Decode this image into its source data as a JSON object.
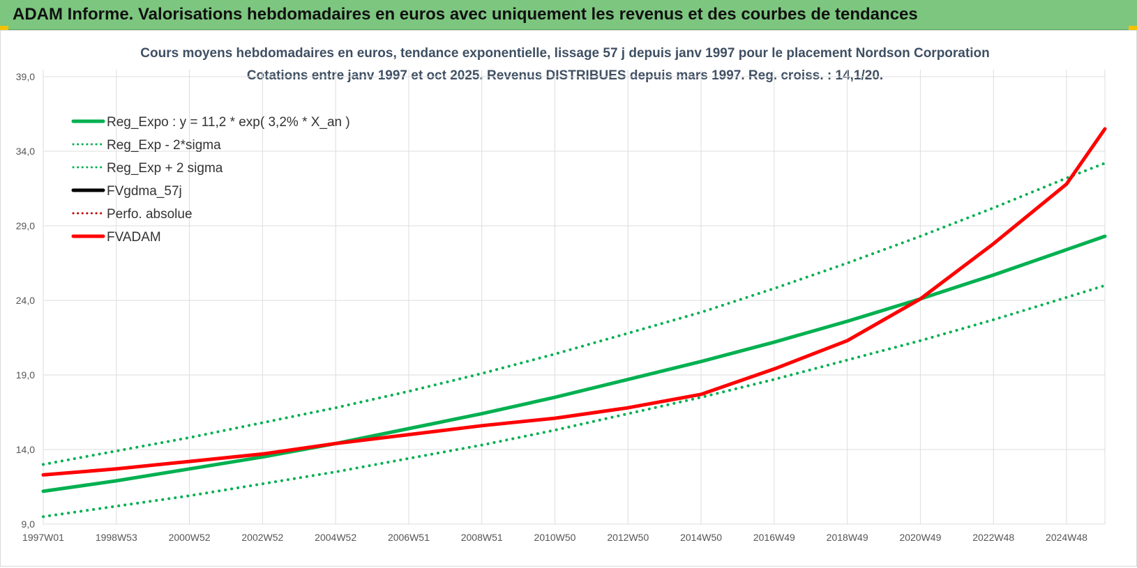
{
  "header": {
    "title": "ADAM Informe. Valorisations hebdomadaires en euros avec uniquement les revenus et des courbes de tendances",
    "color": "#7cc67f"
  },
  "chart_data": {
    "type": "line",
    "title": "Cours moyens hebdomadaires en euros, tendance exponentielle, lissage 57 j depuis janv 1997 pour le placement Nordson Corporation",
    "subtitle": "Cotations entre janv 1997 et oct 2025. Revenus DISTRIBUES depuis mars 1997. Reg. croiss. : 14,1/20.",
    "xlabel": "",
    "ylabel": "",
    "ylim": [
      9.0,
      39.0
    ],
    "y_ticks": [
      "9,0",
      "14,0",
      "19,0",
      "24,0",
      "29,0",
      "34,0",
      "39,0"
    ],
    "x_ticks": [
      "1997W01",
      "1998W53",
      "2000W52",
      "2002W52",
      "2004W52",
      "2006W51",
      "2008W51",
      "2010W50",
      "2012W50",
      "2014W50",
      "2016W49",
      "2018W49",
      "2020W49",
      "2022W48",
      "2024W48"
    ],
    "x": [
      "1997W01",
      "1998W53",
      "2000W52",
      "2002W52",
      "2004W52",
      "2006W51",
      "2008W51",
      "2010W50",
      "2012W50",
      "2014W50",
      "2016W49",
      "2018W49",
      "2020W49",
      "2022W48",
      "2024W48",
      "2025W43"
    ],
    "grid": true,
    "legend_position": "top-left",
    "series": [
      {
        "name": "Reg_Expo : y = 11,2 * exp( 3,2% *  X_an )",
        "color": "#00b050",
        "style": "solid",
        "values": [
          11.2,
          11.9,
          12.7,
          13.5,
          14.4,
          15.4,
          16.4,
          17.5,
          18.7,
          19.9,
          21.2,
          22.6,
          24.1,
          25.7,
          27.4,
          28.3
        ]
      },
      {
        "name": "Reg_Exp - 2*sigma",
        "color": "#00b050",
        "style": "dotted",
        "values": [
          9.5,
          10.2,
          10.9,
          11.7,
          12.5,
          13.4,
          14.3,
          15.3,
          16.4,
          17.5,
          18.7,
          20.0,
          21.3,
          22.7,
          24.2,
          25.0
        ]
      },
      {
        "name": "Reg_Exp + 2 sigma",
        "color": "#00b050",
        "style": "dotted",
        "values": [
          13.0,
          13.9,
          14.8,
          15.8,
          16.8,
          17.9,
          19.1,
          20.4,
          21.8,
          23.2,
          24.8,
          26.5,
          28.3,
          30.2,
          32.2,
          33.2
        ]
      },
      {
        "name": "FVgdma_57j",
        "color": "#000000",
        "style": "solid",
        "values": [
          12.3,
          12.7,
          13.2,
          13.7,
          14.4,
          15.0,
          15.6,
          16.1,
          16.8,
          17.7,
          19.4,
          21.3,
          24.1,
          27.8,
          31.8,
          35.5
        ]
      },
      {
        "name": "Perfo. absolue",
        "color": "#c00000",
        "style": "dotted",
        "values": [
          12.3,
          12.7,
          13.2,
          13.7,
          14.4,
          15.0,
          15.6,
          16.1,
          16.8,
          17.7,
          19.4,
          21.3,
          24.1,
          27.8,
          31.8,
          35.5
        ]
      },
      {
        "name": "FVADAM",
        "color": "#ff0000",
        "style": "solid",
        "values": [
          12.3,
          12.7,
          13.2,
          13.7,
          14.4,
          15.0,
          15.6,
          16.1,
          16.8,
          17.7,
          19.4,
          21.3,
          24.1,
          27.8,
          31.8,
          35.5
        ]
      }
    ]
  }
}
